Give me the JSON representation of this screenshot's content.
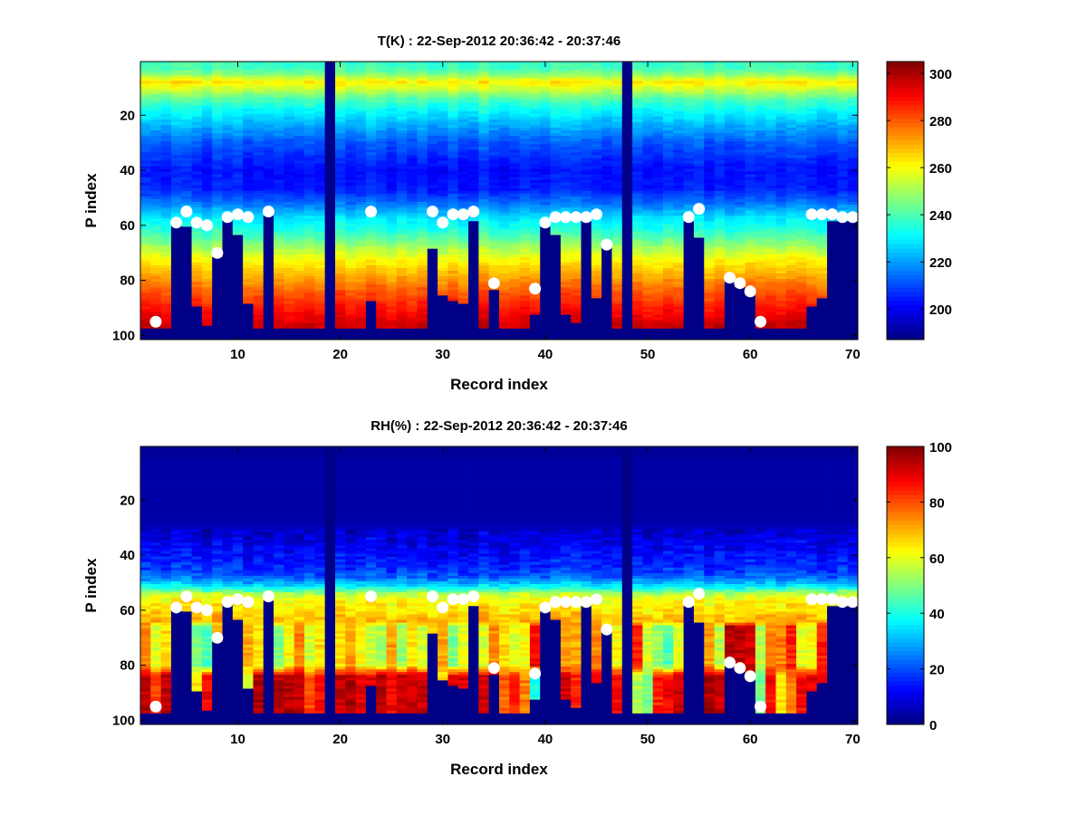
{
  "chart_data": [
    {
      "type": "heatmap",
      "title": "T(K) : 22-Sep-2012 20:36:42 - 20:37:46",
      "xlabel": "Record index",
      "ylabel": "P index",
      "xlim": [
        0.5,
        70.5
      ],
      "ylim": [
        0.5,
        101.5
      ],
      "y_reversed": true,
      "xticks": [
        10,
        20,
        30,
        40,
        50,
        60,
        70
      ],
      "yticks": [
        20,
        40,
        60,
        80,
        100
      ],
      "colormap": "jet",
      "colorbar": {
        "clim": [
          187,
          305
        ],
        "ticks": [
          200,
          220,
          240,
          260,
          280,
          300
        ]
      },
      "n_records": 70,
      "n_levels": 101,
      "missing_records": [
        19,
        48
      ],
      "mask_start": [
        98,
        98,
        98,
        60,
        61,
        90,
        97,
        72,
        58,
        64,
        89,
        98,
        57,
        98,
        98,
        98,
        98,
        98,
        0,
        98,
        98,
        98,
        88,
        98,
        98,
        98,
        98,
        98,
        69,
        86,
        88,
        89,
        59,
        98,
        84,
        98,
        98,
        98,
        93,
        61,
        64,
        93,
        96,
        59,
        87,
        68,
        98,
        0,
        98,
        98,
        98,
        98,
        98,
        59,
        65,
        98,
        98,
        81,
        83,
        86,
        98,
        98,
        98,
        98,
        98,
        90,
        87,
        59,
        59,
        59
      ],
      "profile": {
        "p": [
          1,
          3,
          5,
          8,
          11,
          14,
          18,
          22,
          30,
          40,
          47,
          52,
          57,
          62,
          67,
          72,
          78,
          84,
          90,
          96,
          101
        ],
        "value": [
          238,
          239,
          246,
          263,
          253,
          241,
          232,
          225,
          212,
          203,
          205,
          215,
          228,
          236,
          248,
          260,
          270,
          280,
          288,
          296,
          298
        ]
      },
      "markers": {
        "records": [
          2,
          4,
          5,
          6,
          7,
          8,
          9,
          10,
          11,
          13,
          23,
          29,
          30,
          31,
          32,
          33,
          35,
          39,
          40,
          41,
          42,
          43,
          44,
          45,
          46,
          54,
          55,
          58,
          59,
          60,
          61,
          66,
          67,
          68,
          69,
          70
        ],
        "p_index": [
          95,
          59,
          55,
          59,
          60,
          70,
          57,
          56,
          57,
          55,
          55,
          55,
          59,
          56,
          56,
          55,
          81,
          83,
          59,
          57,
          57,
          57,
          57,
          56,
          67,
          57,
          54,
          79,
          81,
          84,
          95,
          56,
          56,
          56,
          57,
          57
        ]
      }
    },
    {
      "type": "heatmap",
      "title": "RH(%) : 22-Sep-2012 20:36:42 - 20:37:46",
      "xlabel": "Record index",
      "ylabel": "P index",
      "xlim": [
        0.5,
        70.5
      ],
      "ylim": [
        0.5,
        101.5
      ],
      "y_reversed": true,
      "xticks": [
        10,
        20,
        30,
        40,
        50,
        60,
        70
      ],
      "yticks": [
        20,
        40,
        60,
        80,
        100
      ],
      "colormap": "jet",
      "colorbar": {
        "clim": [
          0,
          100
        ],
        "ticks": [
          0,
          20,
          40,
          60,
          80,
          100
        ]
      },
      "n_records": 70,
      "n_levels": 101,
      "missing_records": [
        19,
        48
      ],
      "mask_start": [
        98,
        98,
        98,
        60,
        61,
        90,
        97,
        72,
        58,
        64,
        89,
        98,
        57,
        98,
        98,
        98,
        98,
        98,
        0,
        98,
        98,
        98,
        88,
        98,
        98,
        98,
        98,
        98,
        69,
        86,
        88,
        89,
        59,
        98,
        84,
        98,
        98,
        98,
        93,
        61,
        64,
        93,
        96,
        59,
        87,
        68,
        98,
        0,
        98,
        98,
        98,
        98,
        98,
        59,
        65,
        98,
        98,
        81,
        83,
        86,
        98,
        98,
        98,
        98,
        98,
        90,
        87,
        59,
        59,
        59
      ],
      "profile": {
        "p": [
          1,
          28,
          32,
          38,
          44,
          48,
          50,
          52,
          54,
          56,
          60,
          64
        ],
        "value": [
          3,
          4,
          8,
          12,
          16,
          22,
          30,
          40,
          55,
          62,
          65,
          70
        ]
      },
      "rh_mid_layer": [
        75,
        60,
        65,
        65,
        65,
        50,
        45,
        70,
        65,
        65,
        70,
        65,
        65,
        50,
        62,
        75,
        58,
        65,
        0,
        65,
        72,
        62,
        58,
        55,
        72,
        52,
        65,
        58,
        65,
        72,
        50,
        60,
        65,
        60,
        75,
        65,
        60,
        62,
        88,
        65,
        65,
        72,
        70,
        65,
        75,
        65,
        62,
        0,
        85,
        58,
        52,
        45,
        60,
        65,
        65,
        72,
        55,
        95,
        95,
        92,
        55,
        75,
        75,
        85,
        60,
        62,
        85,
        65,
        65,
        65
      ],
      "rh_low_layer": [
        95,
        80,
        95,
        90,
        90,
        65,
        88,
        90,
        90,
        90,
        60,
        95,
        90,
        95,
        95,
        92,
        80,
        88,
        0,
        93,
        95,
        90,
        90,
        95,
        88,
        93,
        93,
        93,
        90,
        65,
        90,
        90,
        90,
        92,
        90,
        78,
        85,
        75,
        40,
        90,
        90,
        92,
        85,
        90,
        90,
        90,
        88,
        0,
        55,
        50,
        85,
        88,
        93,
        90,
        90,
        95,
        93,
        95,
        95,
        95,
        50,
        88,
        65,
        75,
        88,
        90,
        90,
        90,
        90,
        90
      ],
      "markers": {
        "records": [
          2,
          4,
          5,
          6,
          7,
          8,
          9,
          10,
          11,
          13,
          23,
          29,
          30,
          31,
          32,
          33,
          35,
          39,
          40,
          41,
          42,
          43,
          44,
          45,
          46,
          54,
          55,
          58,
          59,
          60,
          61,
          66,
          67,
          68,
          69,
          70
        ],
        "p_index": [
          95,
          59,
          55,
          59,
          60,
          70,
          57,
          56,
          57,
          55,
          55,
          55,
          59,
          56,
          56,
          55,
          81,
          83,
          59,
          57,
          57,
          57,
          57,
          56,
          67,
          57,
          54,
          79,
          81,
          84,
          95,
          56,
          56,
          56,
          57,
          57
        ]
      }
    }
  ]
}
